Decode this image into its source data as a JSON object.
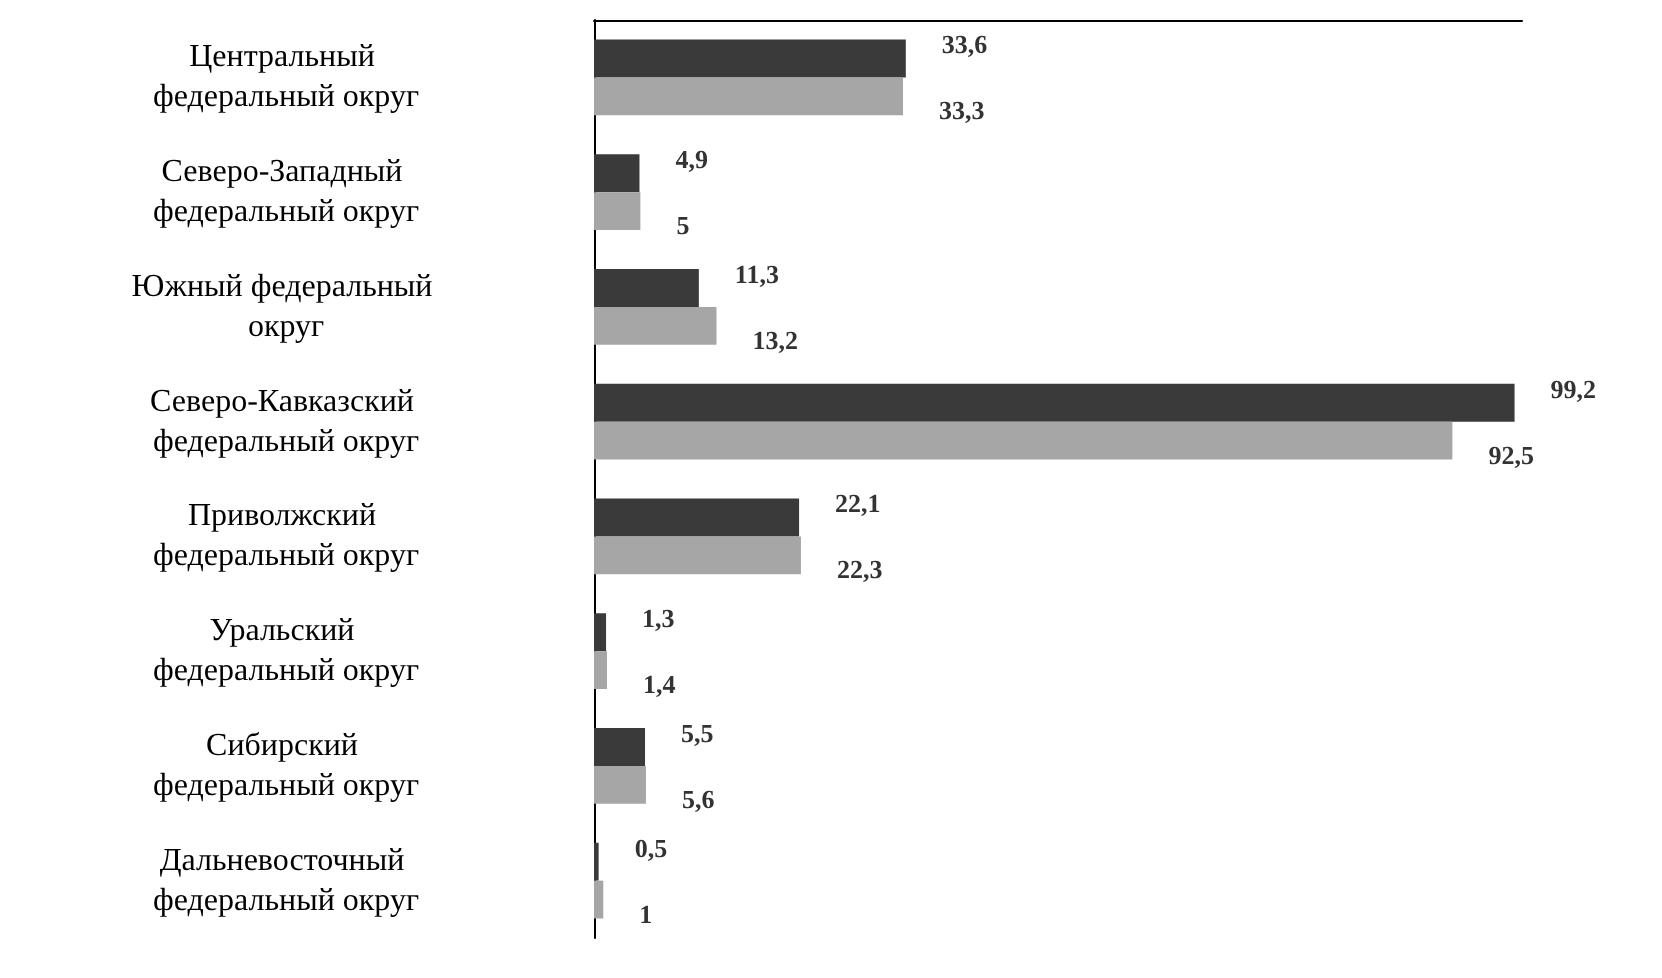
{
  "chart_data": {
    "type": "bar",
    "orientation": "horizontal",
    "relative": false,
    "categories": [
      "Центральный федеральный округ",
      "Северо-Западный федеральный округ",
      "Южный федеральный округ",
      "Северо-Кавказский федеральный округ",
      "Приволжский федеральный округ",
      "Уральский федеральный округ",
      "Сибирский федеральный округ",
      "Дальневосточный федеральный округ"
    ],
    "series": [
      {
        "color": "#3a3a3a",
        "values": [
          33.6,
          4.9,
          11.3,
          99.2,
          22.1,
          1.3,
          5.5,
          0.5
        ],
        "value_labels": [
          "33,6",
          "4,9",
          "11,3",
          "99,2",
          "22,1",
          "1,3",
          "5,5",
          "0,5"
        ]
      },
      {
        "color": "#a6a6a6",
        "values": [
          33.3,
          5,
          13.2,
          92.5,
          22.3,
          1.4,
          5.6,
          1
        ],
        "value_labels": [
          "33,3",
          "5",
          "13,2",
          "92,5",
          "22,3",
          "1,4",
          "5,6",
          "1"
        ]
      }
    ],
    "grid": false
  }
}
